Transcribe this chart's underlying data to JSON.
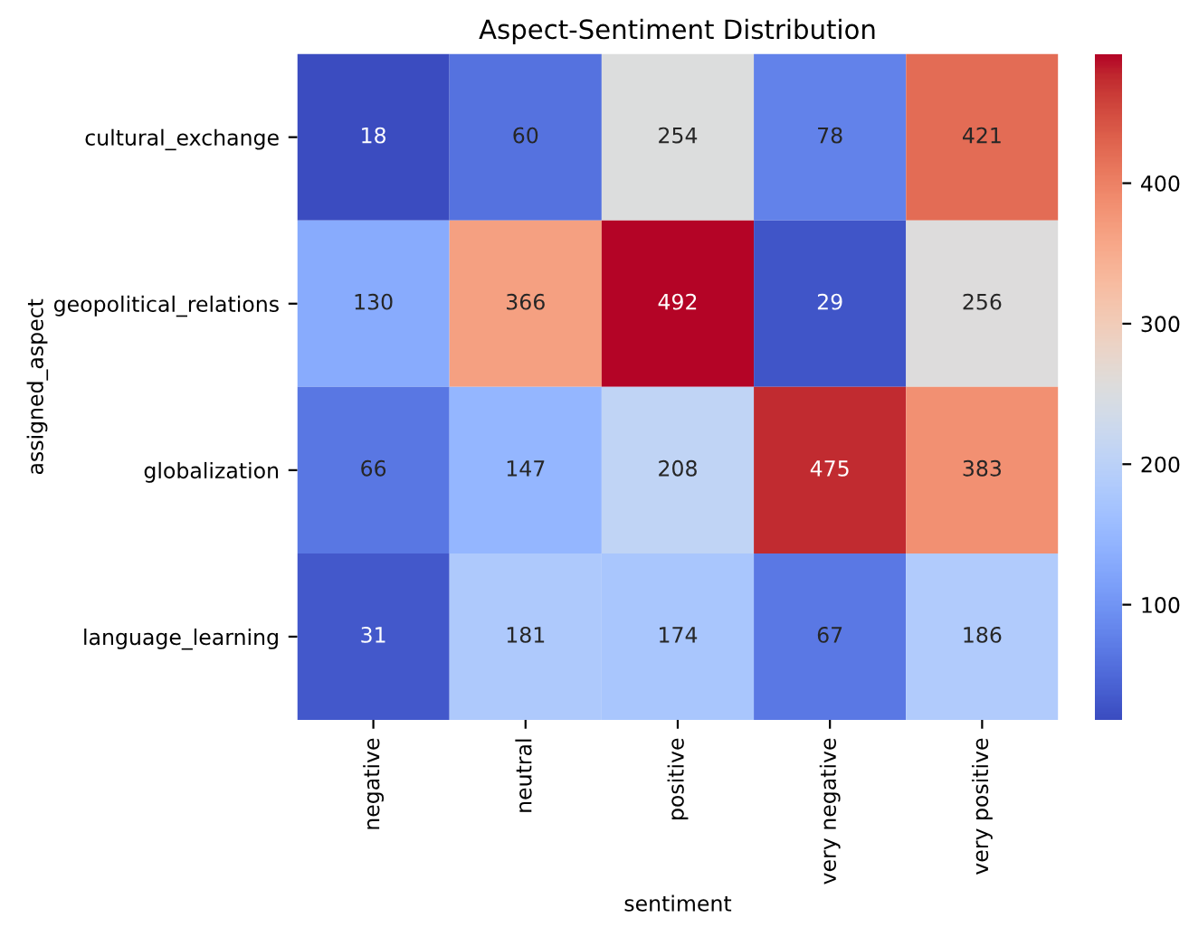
{
  "chart_data": {
    "type": "heatmap",
    "title": "Aspect-Sentiment Distribution",
    "xlabel": "sentiment",
    "ylabel": "assigned_aspect",
    "categories": [
      "negative",
      "neutral",
      "positive",
      "very negative",
      "very positive"
    ],
    "y_categories": [
      "cultural_exchange",
      "geopolitical_relations",
      "globalization",
      "language_learning"
    ],
    "cells": [
      [
        18,
        60,
        254,
        78,
        421
      ],
      [
        130,
        366,
        492,
        29,
        256
      ],
      [
        66,
        147,
        208,
        475,
        383
      ],
      [
        31,
        181,
        174,
        67,
        186
      ]
    ],
    "clim": [
      18,
      492
    ],
    "cticks": [
      100,
      200,
      300,
      400
    ],
    "data_labels": true
  }
}
